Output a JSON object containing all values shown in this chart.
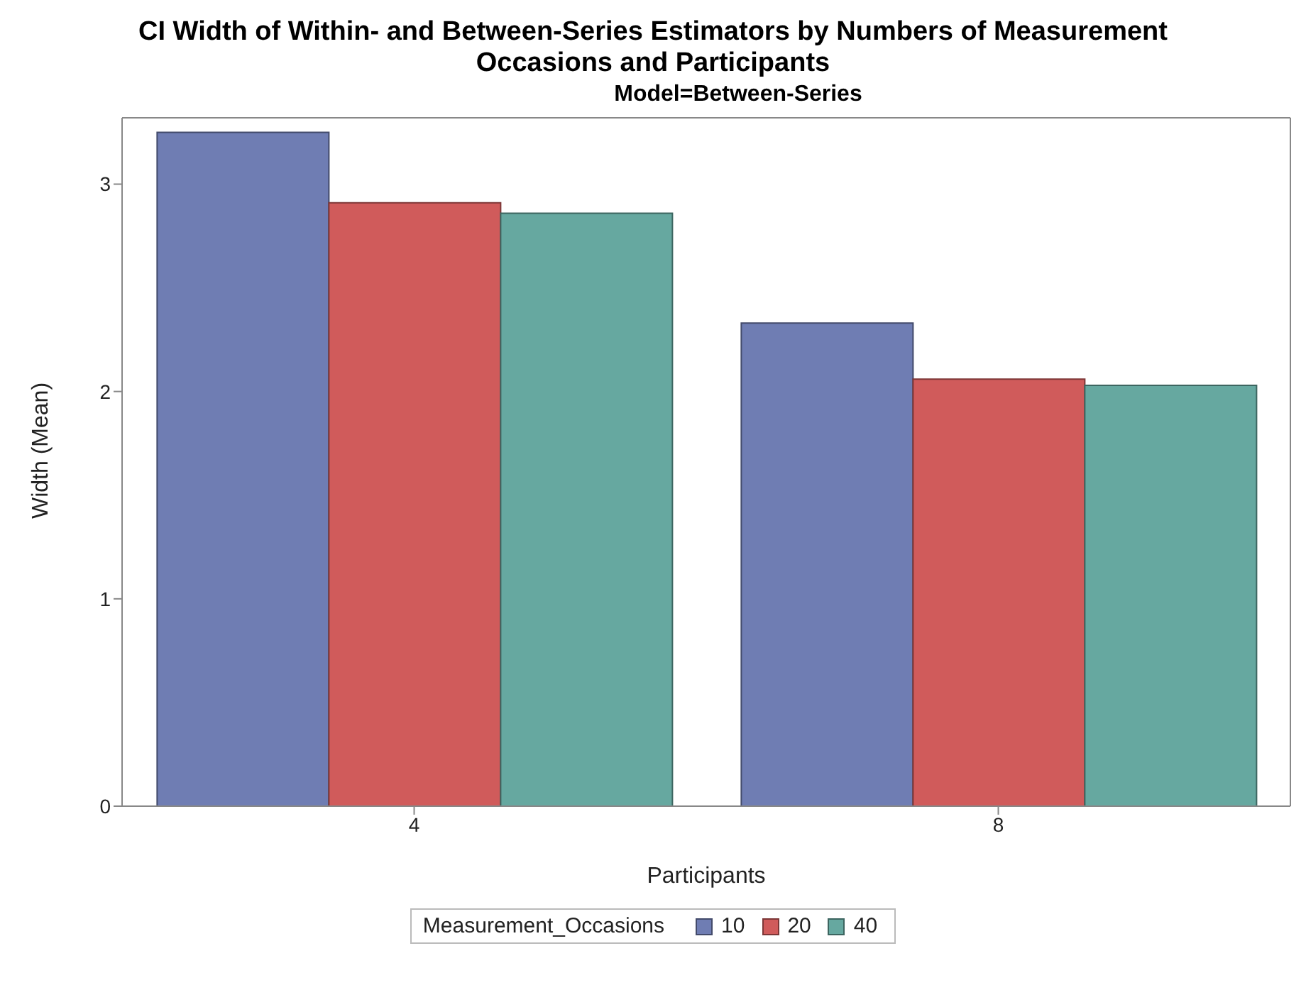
{
  "chart_data": {
    "type": "bar",
    "title": "CI Width of Within- and Between-Series Estimators by Numbers of Measurement Occasions and Participants",
    "subtitle": "Model=Between-Series",
    "xlabel": "Participants",
    "ylabel": "Width (Mean)",
    "legend_title": "Measurement_Occasions",
    "categories": [
      "4",
      "8"
    ],
    "series": [
      {
        "name": "10",
        "color": "#6f7db3",
        "values": [
          3.25,
          2.33
        ]
      },
      {
        "name": "20",
        "color": "#d05b5b",
        "values": [
          2.91,
          2.06
        ]
      },
      {
        "name": "40",
        "color": "#66a8a0",
        "values": [
          2.86,
          2.03
        ]
      }
    ],
    "ylim": [
      0,
      3.32
    ],
    "yticks": [
      0,
      1,
      2,
      3
    ],
    "legend": "bottom"
  }
}
